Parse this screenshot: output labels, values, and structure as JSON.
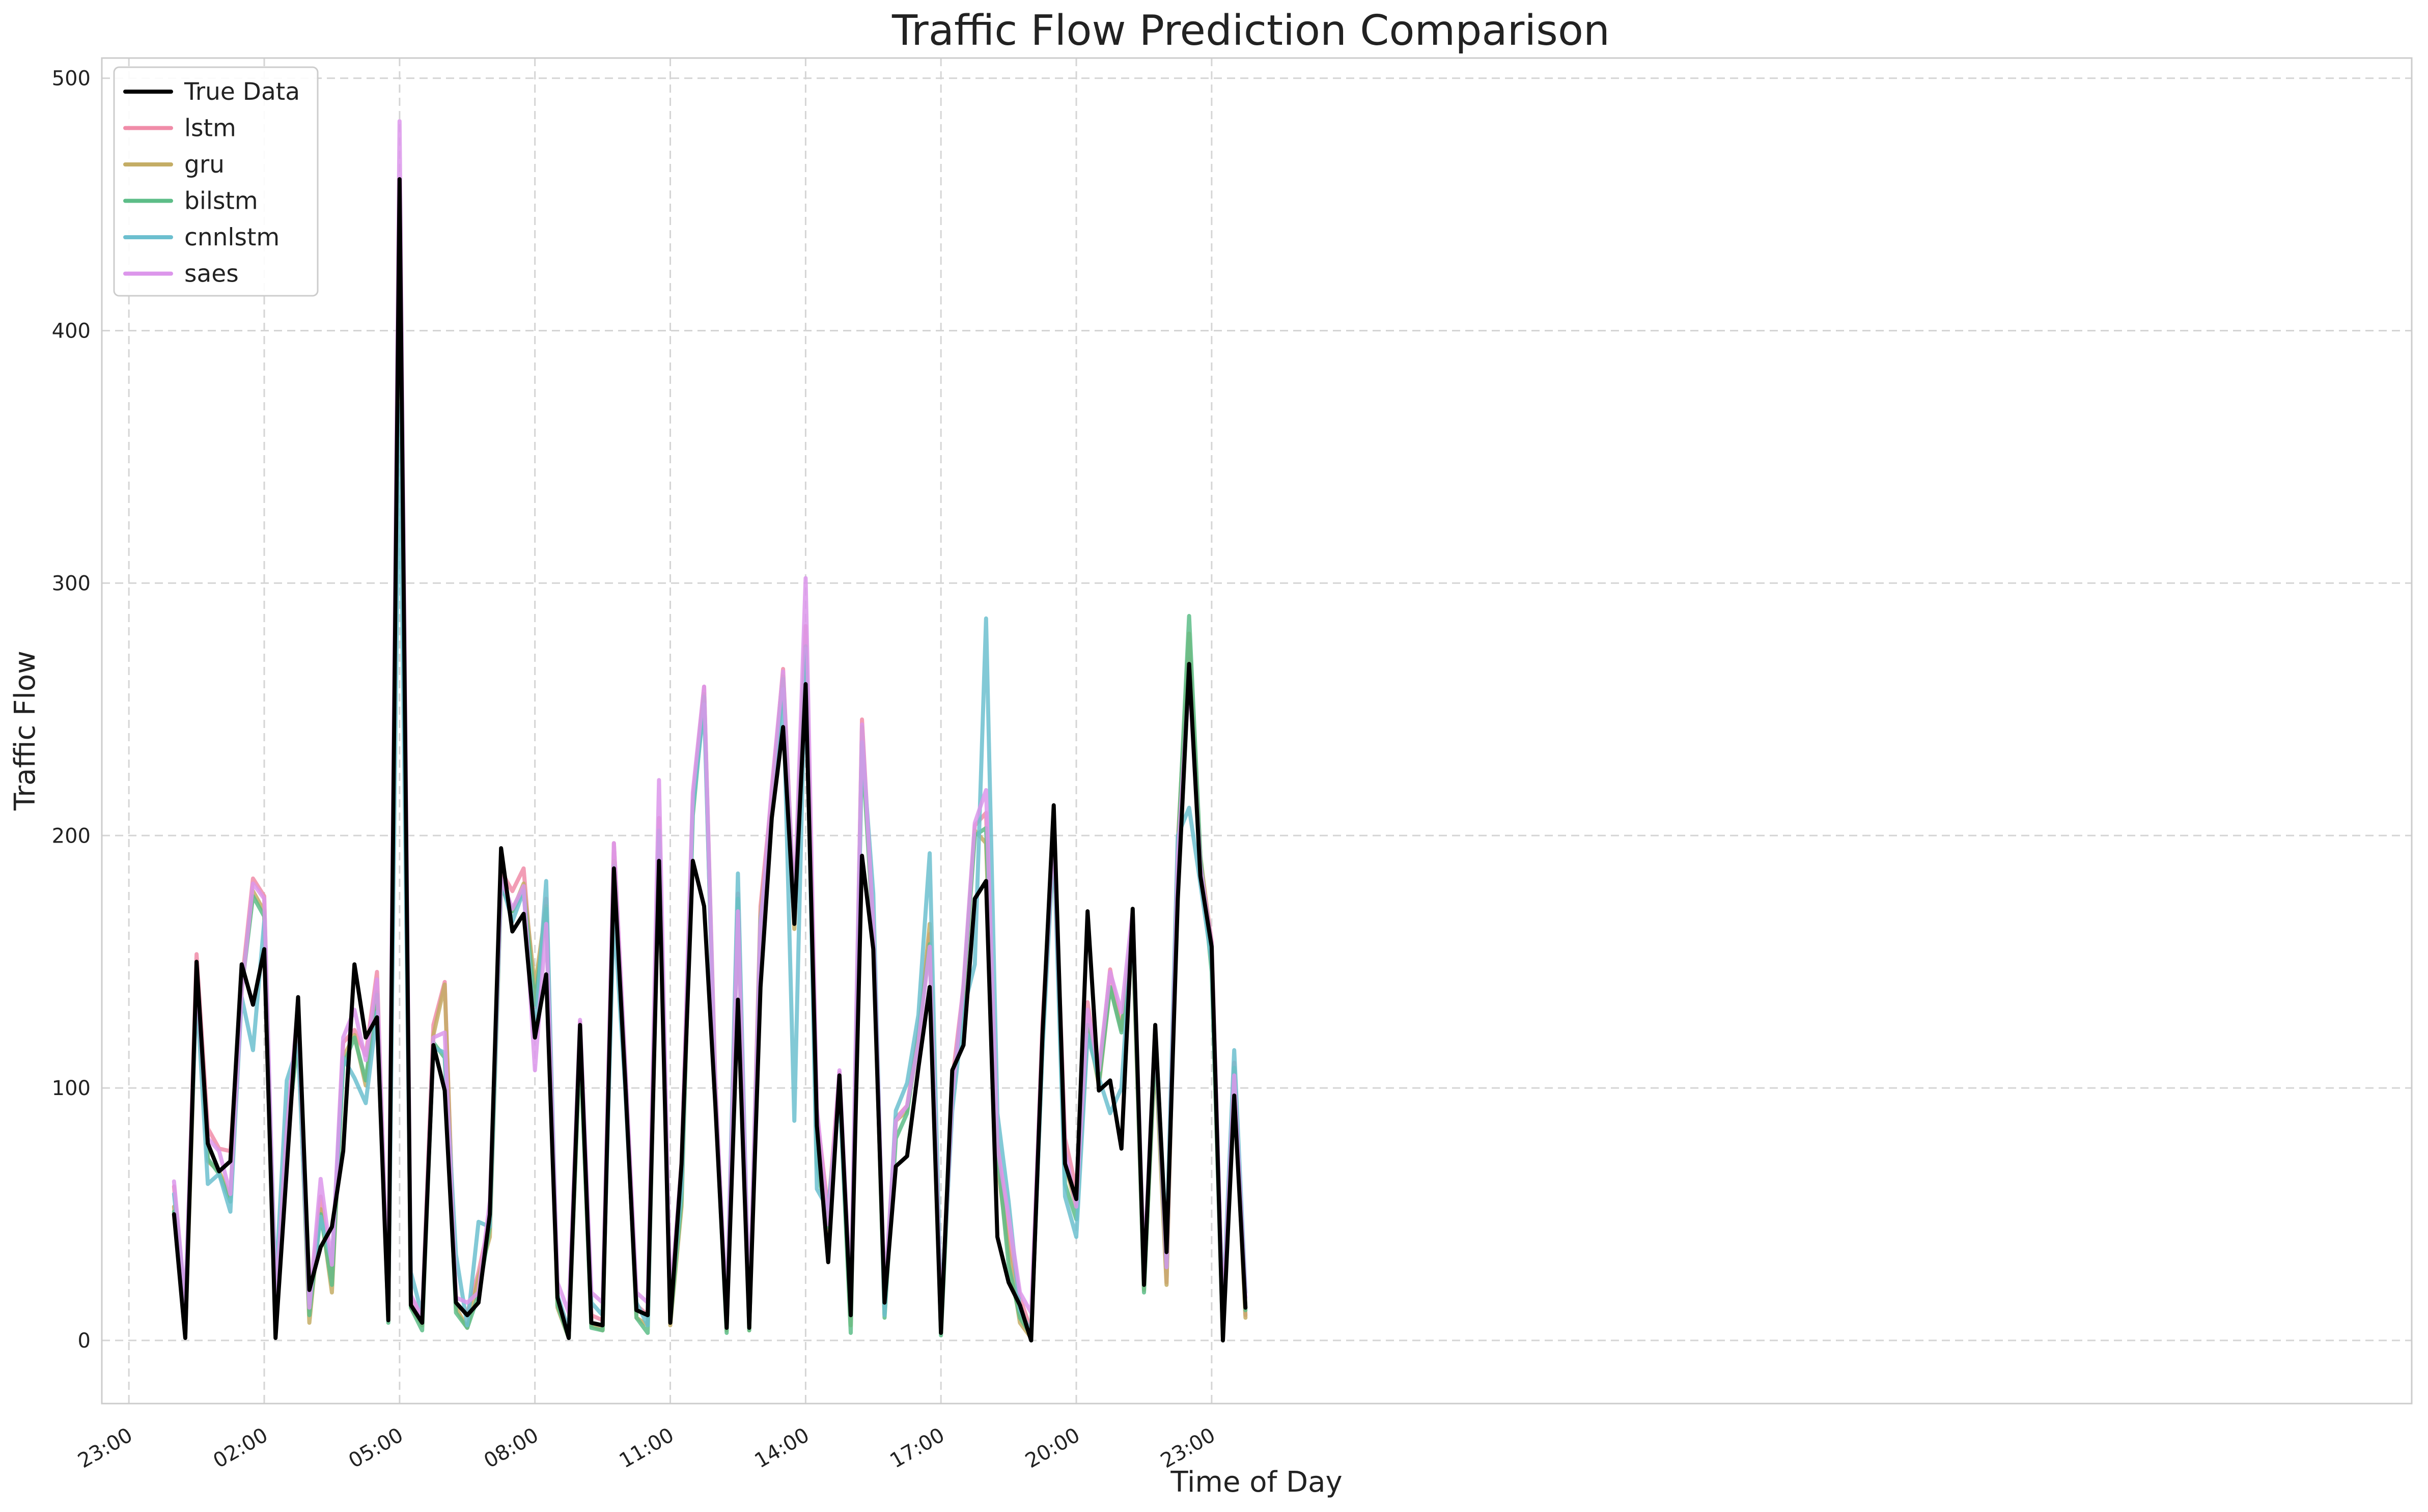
{
  "chart_data": {
    "type": "line",
    "title": "Traffic Flow Prediction Comparison",
    "xlabel": "Time of Day",
    "ylabel": "Traffic Flow",
    "xlim_hours": [
      -1.6,
      49.6
    ],
    "ylim": [
      -25,
      508
    ],
    "x_ticks": [
      {
        "label": "23:00",
        "hour": -1
      },
      {
        "label": "02:00",
        "hour": 2
      },
      {
        "label": "05:00",
        "hour": 5
      },
      {
        "label": "08:00",
        "hour": 8
      },
      {
        "label": "11:00",
        "hour": 11
      },
      {
        "label": "14:00",
        "hour": 14
      },
      {
        "label": "17:00",
        "hour": 17
      },
      {
        "label": "20:00",
        "hour": 20
      },
      {
        "label": "23:00",
        "hour": 23
      }
    ],
    "y_ticks": [
      0,
      100,
      200,
      300,
      400,
      500
    ],
    "grid": true,
    "legend": "top-left",
    "x": [
      0.0,
      0.25,
      0.5,
      0.75,
      1.0,
      1.25,
      1.5,
      1.75,
      2.0,
      2.25,
      2.5,
      2.75,
      3.0,
      3.25,
      3.5,
      3.75,
      4.0,
      4.25,
      4.5,
      4.75,
      5.0,
      5.25,
      5.5,
      5.75,
      6.0,
      6.25,
      6.5,
      6.75,
      7.0,
      7.25,
      7.5,
      7.75,
      8.0,
      8.25,
      8.5,
      8.75,
      9.0,
      9.25,
      9.5,
      9.75,
      10.0,
      10.25,
      10.5,
      10.75,
      11.0,
      11.25,
      11.5,
      11.75,
      12.0,
      12.25,
      12.5,
      12.75,
      13.0,
      13.25,
      13.5,
      13.75,
      14.0,
      14.25,
      14.5,
      14.75,
      15.0,
      15.25,
      15.5,
      15.75,
      16.0,
      16.25,
      16.5,
      16.75,
      17.0,
      17.25,
      17.5,
      17.75,
      18.0,
      18.25,
      18.5,
      18.75,
      19.0,
      19.25,
      19.5,
      19.75,
      20.0,
      20.25,
      20.5,
      20.75,
      21.0,
      21.25,
      21.5,
      21.75,
      22.0,
      22.25,
      22.5,
      22.75,
      23.0,
      23.25,
      23.5,
      23.75
    ],
    "series": [
      {
        "name": "True Data",
        "color": "#000000",
        "values": [
          50,
          1,
          150,
          78,
          67,
          71,
          149,
          133,
          155,
          1,
          68,
          136,
          20,
          37,
          45,
          75,
          149,
          120,
          128,
          8,
          460,
          14,
          7,
          117,
          99,
          15,
          10,
          15,
          50,
          195,
          162,
          169,
          120,
          145,
          17,
          1,
          125,
          7,
          6,
          187,
          103,
          12,
          10,
          190,
          7,
          70,
          190,
          172,
          93,
          5,
          135,
          5,
          140,
          207,
          243,
          165,
          260,
          85,
          31,
          105,
          10,
          192,
          155,
          15,
          69,
          73,
          108,
          140,
          3,
          107,
          117,
          175,
          182,
          41,
          23,
          14,
          0,
          121,
          212,
          70,
          56,
          170,
          99,
          103,
          76,
          171,
          22,
          125,
          35,
          175,
          268,
          184,
          156,
          0,
          97,
          13
        ]
      },
      {
        "name": "lstm",
        "color": "#f08ca8",
        "values": [
          61,
          10,
          153,
          84,
          76,
          75,
          141,
          183,
          176,
          7,
          86,
          130,
          12,
          57,
          25,
          118,
          123,
          113,
          146,
          10,
          460,
          17,
          10,
          125,
          142,
          14,
          11,
          27,
          48,
          186,
          178,
          187,
          132,
          175,
          17,
          4,
          126,
          10,
          8,
          197,
          109,
          14,
          10,
          207,
          9,
          71,
          214,
          259,
          102,
          6,
          177,
          6,
          172,
          216,
          266,
          170,
          283,
          90,
          51,
          106,
          9,
          246,
          164,
          12,
          88,
          93,
          122,
          161,
          5,
          103,
          140,
          204,
          209,
          78,
          41,
          17,
          4,
          126,
          200,
          80,
          60,
          134,
          104,
          147,
          123,
          163,
          22,
          121,
          23,
          196,
          270,
          190,
          158,
          4,
          110,
          10
        ]
      },
      {
        "name": "gru",
        "color": "#c4ad65",
        "values": [
          53,
          2,
          142,
          71,
          67,
          57,
          140,
          178,
          170,
          4,
          82,
          122,
          7,
          52,
          19,
          112,
          121,
          101,
          138,
          8,
          458,
          13,
          6,
          121,
          141,
          13,
          5,
          25,
          41,
          180,
          170,
          181,
          140,
          172,
          13,
          1,
          118,
          6,
          4,
          190,
          107,
          9,
          6,
          202,
          6,
          53,
          211,
          256,
          99,
          4,
          174,
          4,
          168,
          213,
          263,
          163,
          275,
          85,
          40,
          104,
          6,
          243,
          160,
          10,
          87,
          91,
          119,
          165,
          3,
          99,
          137,
          202,
          197,
          70,
          35,
          7,
          1,
          121,
          196,
          70,
          53,
          125,
          101,
          140,
          123,
          160,
          20,
          115,
          22,
          197,
          280,
          192,
          156,
          1,
          103,
          9
        ]
      },
      {
        "name": "bilstm",
        "color": "#5dbd88",
        "values": [
          51,
          4,
          145,
          72,
          66,
          55,
          139,
          176,
          168,
          2,
          80,
          120,
          10,
          50,
          22,
          109,
          120,
          103,
          137,
          7,
          456,
          13,
          4,
          118,
          112,
          11,
          5,
          18,
          45,
          180,
          170,
          178,
          133,
          171,
          14,
          1,
          118,
          5,
          4,
          188,
          107,
          9,
          3,
          200,
          7,
          56,
          208,
          255,
          95,
          3,
          175,
          4,
          160,
          208,
          262,
          167,
          275,
          70,
          45,
          100,
          3,
          236,
          162,
          9,
          80,
          90,
          121,
          157,
          2,
          96,
          138,
          200,
          203,
          75,
          30,
          9,
          2,
          116,
          200,
          62,
          48,
          125,
          102,
          140,
          122,
          165,
          19,
          118,
          29,
          194,
          287,
          192,
          146,
          1,
          108,
          12
        ]
      },
      {
        "name": "cnnlstm",
        "color": "#6cbfcf",
        "values": [
          58,
          15,
          139,
          62,
          66,
          51,
          136,
          115,
          166,
          20,
          103,
          117,
          15,
          49,
          31,
          112,
          104,
          94,
          130,
          12,
          370,
          27,
          10,
          116,
          114,
          34,
          6,
          47,
          45,
          182,
          166,
          178,
          120,
          182,
          18,
          4,
          124,
          15,
          10,
          170,
          100,
          15,
          6,
          202,
          12,
          60,
          211,
          252,
          98,
          8,
          185,
          7,
          166,
          207,
          258,
          87,
          274,
          60,
          52,
          98,
          12,
          237,
          177,
          10,
          91,
          102,
          129,
          193,
          10,
          91,
          131,
          149,
          286,
          90,
          55,
          12,
          3,
          115,
          198,
          57,
          41,
          121,
          104,
          90,
          100,
          166,
          25,
          123,
          38,
          200,
          211,
          181,
          150,
          11,
          115,
          19
        ]
      },
      {
        "name": "saes",
        "color": "#dc96eb",
        "values": [
          63,
          15,
          145,
          80,
          75,
          58,
          138,
          181,
          175,
          14,
          83,
          133,
          13,
          64,
          30,
          120,
          131,
          111,
          143,
          14,
          483,
          18,
          9,
          120,
          122,
          17,
          15,
          19,
          55,
          183,
          171,
          180,
          107,
          165,
          23,
          11,
          127,
          19,
          15,
          197,
          110,
          19,
          15,
          222,
          15,
          70,
          217,
          259,
          100,
          10,
          170,
          10,
          164,
          219,
          265,
          170,
          302,
          92,
          46,
          107,
          16,
          244,
          164,
          18,
          87,
          93,
          118,
          156,
          8,
          97,
          141,
          205,
          218,
          77,
          49,
          19,
          11,
          122,
          203,
          75,
          53,
          131,
          107,
          146,
          130,
          170,
          28,
          124,
          29,
          191,
          264,
          188,
          157,
          9,
          105,
          17
        ]
      }
    ]
  }
}
